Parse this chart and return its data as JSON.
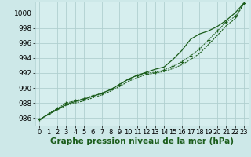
{
  "background_color": "#cde8e8",
  "plot_bg_color": "#d6eeee",
  "grid_color": "#b0d0d0",
  "line_color": "#1a5c1a",
  "xlabel": "Graphe pression niveau de la mer (hPa)",
  "xlabel_fontsize": 7.5,
  "ylabel_fontsize": 6.5,
  "tick_fontsize": 6,
  "ylim": [
    985.0,
    1001.5
  ],
  "xlim": [
    -0.5,
    23.5
  ],
  "yticks": [
    986,
    988,
    990,
    992,
    994,
    996,
    998,
    1000
  ],
  "xticks": [
    0,
    1,
    2,
    3,
    4,
    5,
    6,
    7,
    8,
    9,
    10,
    11,
    12,
    13,
    14,
    15,
    16,
    17,
    18,
    19,
    20,
    21,
    22,
    23
  ],
  "series_marked_x": [
    0,
    1,
    2,
    3,
    4,
    5,
    6,
    7,
    8,
    9,
    10,
    11,
    12,
    13,
    14,
    15,
    16,
    17,
    18,
    19,
    20,
    21,
    22,
    23
  ],
  "series_marked_y": [
    985.8,
    986.6,
    987.3,
    988.0,
    988.3,
    988.6,
    989.0,
    989.3,
    989.8,
    990.4,
    991.2,
    991.7,
    992.0,
    992.1,
    992.4,
    992.9,
    993.5,
    994.3,
    995.2,
    996.4,
    997.6,
    998.8,
    999.5,
    1001.3
  ],
  "series_smooth_y": [
    985.8,
    986.5,
    987.2,
    987.8,
    988.2,
    988.5,
    988.9,
    989.3,
    989.8,
    990.5,
    991.2,
    991.7,
    992.1,
    992.5,
    992.8,
    993.8,
    995.0,
    996.5,
    997.2,
    997.6,
    998.2,
    999.0,
    1000.0,
    1001.3
  ],
  "series_lower_y": [
    985.8,
    986.5,
    987.1,
    987.7,
    988.0,
    988.3,
    988.7,
    989.1,
    989.6,
    990.2,
    990.9,
    991.4,
    991.8,
    992.0,
    992.2,
    992.6,
    993.1,
    993.8,
    994.6,
    995.8,
    997.0,
    998.3,
    999.2,
    1001.3
  ]
}
